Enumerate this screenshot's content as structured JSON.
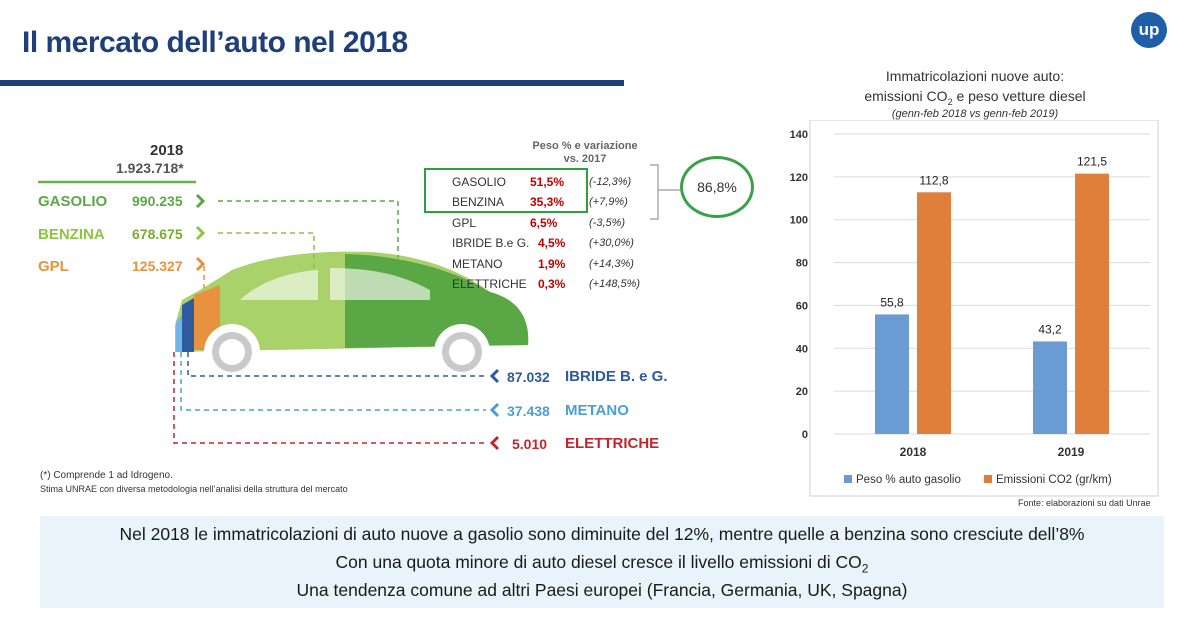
{
  "header": {
    "title": "Il mercato dell’auto nel 2018",
    "logo_text": "up"
  },
  "left": {
    "year": "2018",
    "total": "1.923.718*",
    "fuels": [
      {
        "label": "GASOLIO",
        "value": "990.235",
        "color": "#5aa845"
      },
      {
        "label": "BENZINA",
        "value": "678.675",
        "color": "#8cc63f"
      },
      {
        "label": "GPL",
        "value": "125.327",
        "color": "#f0a050"
      }
    ],
    "others": [
      {
        "label": "IBRIDE B. e G.",
        "value": "87.032",
        "color": "#2e5a9e"
      },
      {
        "label": "METANO",
        "value": "37.438",
        "color": "#4a9fd6"
      },
      {
        "label": "ELETTRICHE",
        "value": "5.010",
        "color": "#c0272d"
      }
    ]
  },
  "shares": {
    "title_line1": "Peso % e variazione",
    "title_line2": "vs. 2017",
    "rows": [
      {
        "name": "GASOLIO",
        "pct": "51,5%",
        "var": "(-12,3%)"
      },
      {
        "name": "BENZINA",
        "pct": "35,3%",
        "var": "(+7,9%)"
      },
      {
        "name": "GPL",
        "pct": "6,5%",
        "var": "(-3,5%)"
      },
      {
        "name": "IBRIDE B.e G.",
        "pct": "4,5%",
        "var": "(+30,0%)"
      },
      {
        "name": "METANO",
        "pct": "1,9%",
        "var": "(+14,3%)"
      },
      {
        "name": "ELETTRICHE",
        "pct": "0,3%",
        "var": "(+148,5%)"
      }
    ],
    "combined": "86,8%"
  },
  "footnotes": {
    "note1": "(*) Comprende 1 ad Idrogeno.",
    "note2": "Stima UNRAE con diversa metodologia nell’analisi della struttura del mercato"
  },
  "chart_data": {
    "type": "bar",
    "title_line1": "Immatricolazioni nuove auto:",
    "title_line2_pre": "emissioni CO",
    "title_line2_sub": "2",
    "title_line2_post": " e peso vetture diesel",
    "subtitle": "(genn-feb 2018 vs genn-feb 2019)",
    "categories": [
      "2018",
      "2019"
    ],
    "series": [
      {
        "name": "Peso % auto gasolio",
        "values": [
          55.8,
          43.2
        ],
        "labels": [
          "55,8",
          "43,2"
        ],
        "color": "#6a9bd3"
      },
      {
        "name": "Emissioni CO2 (gr/km)",
        "values": [
          112.8,
          121.5
        ],
        "labels": [
          "112,8",
          "121,5"
        ],
        "color": "#e07f3c"
      }
    ],
    "ylim": [
      0,
      140
    ],
    "yticks": [
      "0",
      "20",
      "40",
      "60",
      "80",
      "100",
      "120",
      "140"
    ],
    "grid": true,
    "legend": "bottom",
    "source": "Fonte: elaborazioni su dati Unrae"
  },
  "summary": {
    "line1": "Nel 2018 le immatricolazioni di auto nuove a gasolio sono diminuite del 12%, mentre quelle a benzina sono cresciute dell’8%",
    "line2_pre": "Con una quota minore di auto diesel cresce il livello emissioni di CO",
    "line2_sub": "2",
    "line3": "Una tendenza comune ad altri Paesi europei (Francia, Germania, UK, Spagna)"
  }
}
